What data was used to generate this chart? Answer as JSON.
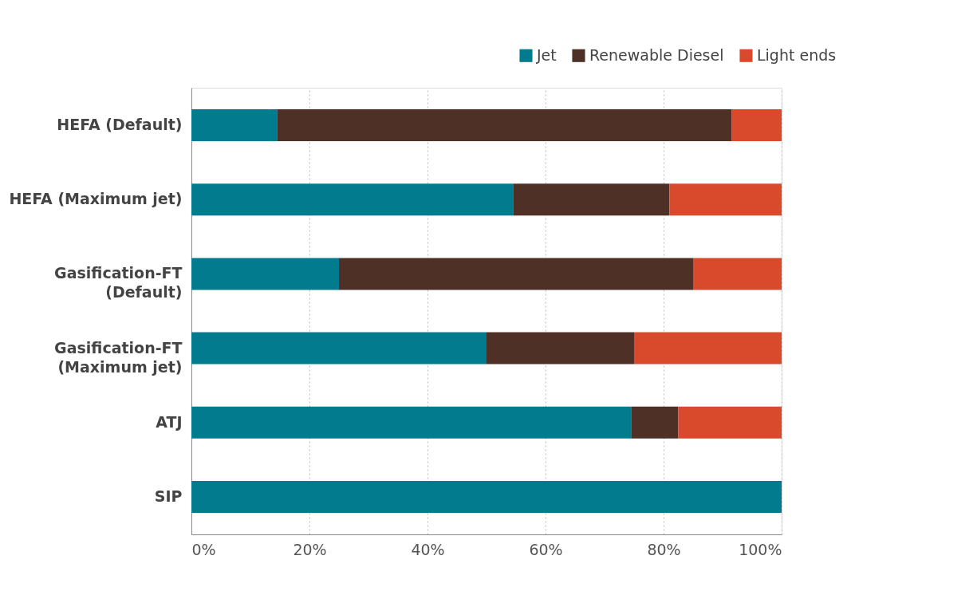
{
  "chart_data": {
    "type": "bar",
    "orientation": "horizontal",
    "stacked": true,
    "categories": [
      "HEFA (Default)",
      "HEFA (Maximum jet)",
      "Gasification-FT\n(Default)",
      "Gasification-FT\n(Maximum jet)",
      "ATJ",
      "SIP"
    ],
    "series": [
      {
        "name": "Jet",
        "color": "#037b8f",
        "values": [
          14.5,
          54.5,
          25,
          50,
          74.5,
          100
        ]
      },
      {
        "name": "Renewable Diesel",
        "color": "#4e3027",
        "values": [
          77,
          26.5,
          60,
          25,
          8,
          null
        ]
      },
      {
        "name": "Light ends",
        "color": "#d84a2b",
        "values": [
          8.5,
          19,
          15,
          25,
          17.5,
          null
        ]
      }
    ],
    "xlim": [
      0,
      100
    ],
    "xticks": [
      {
        "value": 0,
        "label": "0%"
      },
      {
        "value": 20,
        "label": "20%"
      },
      {
        "value": 40,
        "label": "40%"
      },
      {
        "value": 60,
        "label": "60%"
      },
      {
        "value": 80,
        "label": "80%"
      },
      {
        "value": 100,
        "label": "100%"
      }
    ],
    "grid": "x",
    "legend": "top right"
  }
}
